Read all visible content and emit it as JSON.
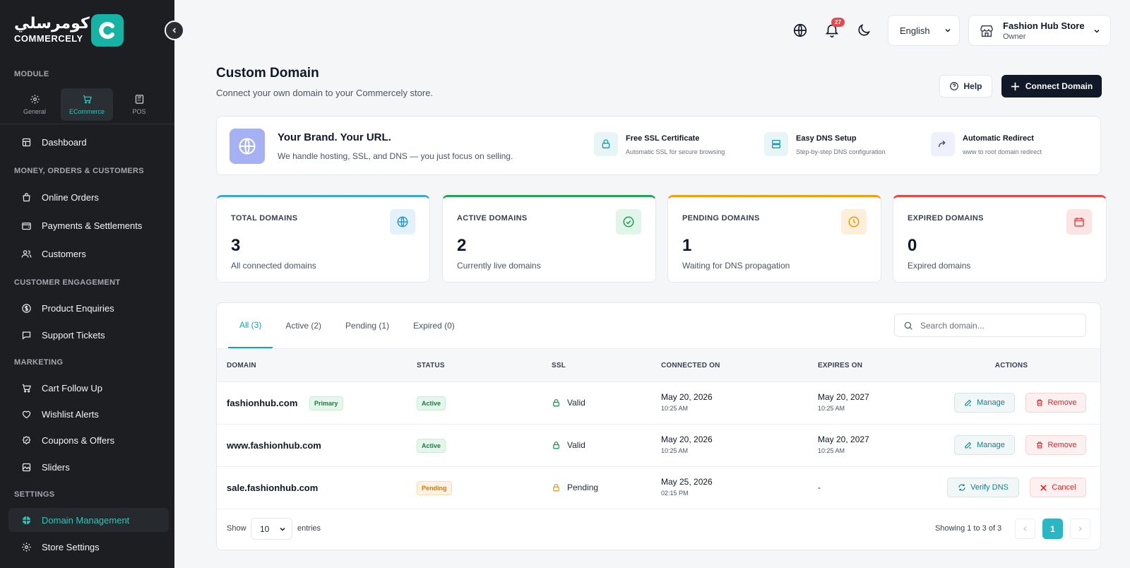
{
  "brand": {
    "arabic_name": "كومرسلي",
    "name": "COMMERCELY",
    "badge_letter": "C",
    "accent": "#16b3a4"
  },
  "sidebar": {
    "module_label": "MODULE",
    "modules": [
      {
        "label": "General",
        "icon": "gear-icon"
      },
      {
        "label": "ECommerce",
        "icon": "cart-icon",
        "active": true
      },
      {
        "label": "POS",
        "icon": "pos-icon"
      }
    ],
    "dashboard": "Dashboard",
    "sections": {
      "money": "MONEY, ORDERS & CUSTOMERS",
      "engagement": "CUSTOMER ENGAGEMENT",
      "marketing": "MARKETING",
      "settings": "SETTINGS"
    },
    "items": {
      "online_orders": "Online Orders",
      "payments": "Payments & Settlements",
      "customers": "Customers",
      "enquiries": "Product Enquiries",
      "tickets": "Support Tickets",
      "cart_follow": "Cart Follow Up",
      "wishlist": "Wishlist Alerts",
      "coupons": "Coupons & Offers",
      "sliders": "Sliders",
      "domain": "Domain Management",
      "store_settings": "Store Settings"
    }
  },
  "header": {
    "notifications_count": "27",
    "language": "English",
    "store_name": "Fashion Hub Store",
    "store_role": "Owner"
  },
  "page": {
    "title": "Custom Domain",
    "subtitle": "Connect your own domain to your Commercely store.",
    "help_label": "Help",
    "connect_label": "Connect Domain"
  },
  "banner": {
    "title": "Your Brand. Your URL.",
    "subtitle": "We handle hosting, SSL, and DNS — you just focus on selling.",
    "features": [
      {
        "title": "Free SSL Certificate",
        "desc": "Automatic SSL for secure browsing",
        "icon": "lock-icon"
      },
      {
        "title": "Easy DNS Setup",
        "desc": "Step-by-step DNS configuration",
        "icon": "server-icon"
      },
      {
        "title": "Automatic Redirect",
        "desc": "www to root domain redirect",
        "icon": "redirect-icon"
      }
    ]
  },
  "stats": [
    {
      "label": "TOTAL DOMAINS",
      "value": "3",
      "desc": "All connected domains",
      "color": "#3aa9d6",
      "icon": "globe-icon"
    },
    {
      "label": "ACTIVE DOMAINS",
      "value": "2",
      "desc": "Currently live domains",
      "color": "#22a55b",
      "icon": "check-circle-icon"
    },
    {
      "label": "PENDING DOMAINS",
      "value": "1",
      "desc": "Waiting for DNS propagation",
      "color": "#f59e0b",
      "icon": "clock-icon"
    },
    {
      "label": "EXPIRED DOMAINS",
      "value": "0",
      "desc": "Expired domains",
      "color": "#ef4444",
      "icon": "calendar-icon"
    }
  ],
  "table": {
    "tabs": [
      "All (3)",
      "Active (2)",
      "Pending (1)",
      "Expired (0)"
    ],
    "search_placeholder": "Search domain...",
    "columns": [
      "DOMAIN",
      "STATUS",
      "SSL",
      "CONNECTED ON",
      "EXPIRES ON",
      "ACTIONS"
    ],
    "rows": [
      {
        "domain": "fashionhub.com",
        "tag": "Primary",
        "status": "Active",
        "ssl": "Valid",
        "connected_date": "May 20, 2026",
        "connected_time": "10:25 AM",
        "expires_date": "May 20, 2027",
        "expires_time": "10:25 AM",
        "action1": "Manage",
        "action2": "Remove"
      },
      {
        "domain": "www.fashionhub.com",
        "tag": "",
        "status": "Active",
        "ssl": "Valid",
        "connected_date": "May 20, 2026",
        "connected_time": "10:25 AM",
        "expires_date": "May 20, 2027",
        "expires_time": "10:25 AM",
        "action1": "Manage",
        "action2": "Remove"
      },
      {
        "domain": "sale.fashionhub.com",
        "tag": "",
        "status": "Pending",
        "ssl": "Pending",
        "connected_date": "May 25, 2026",
        "connected_time": "02:15 PM",
        "expires_date": "-",
        "expires_time": "",
        "action1": "Verify DNS",
        "action2": "Cancel"
      }
    ],
    "footer": {
      "show": "Show",
      "entries_value": "10",
      "entries": "entries",
      "showing": "Showing 1 to 3 of 3",
      "current_page": "1"
    }
  }
}
